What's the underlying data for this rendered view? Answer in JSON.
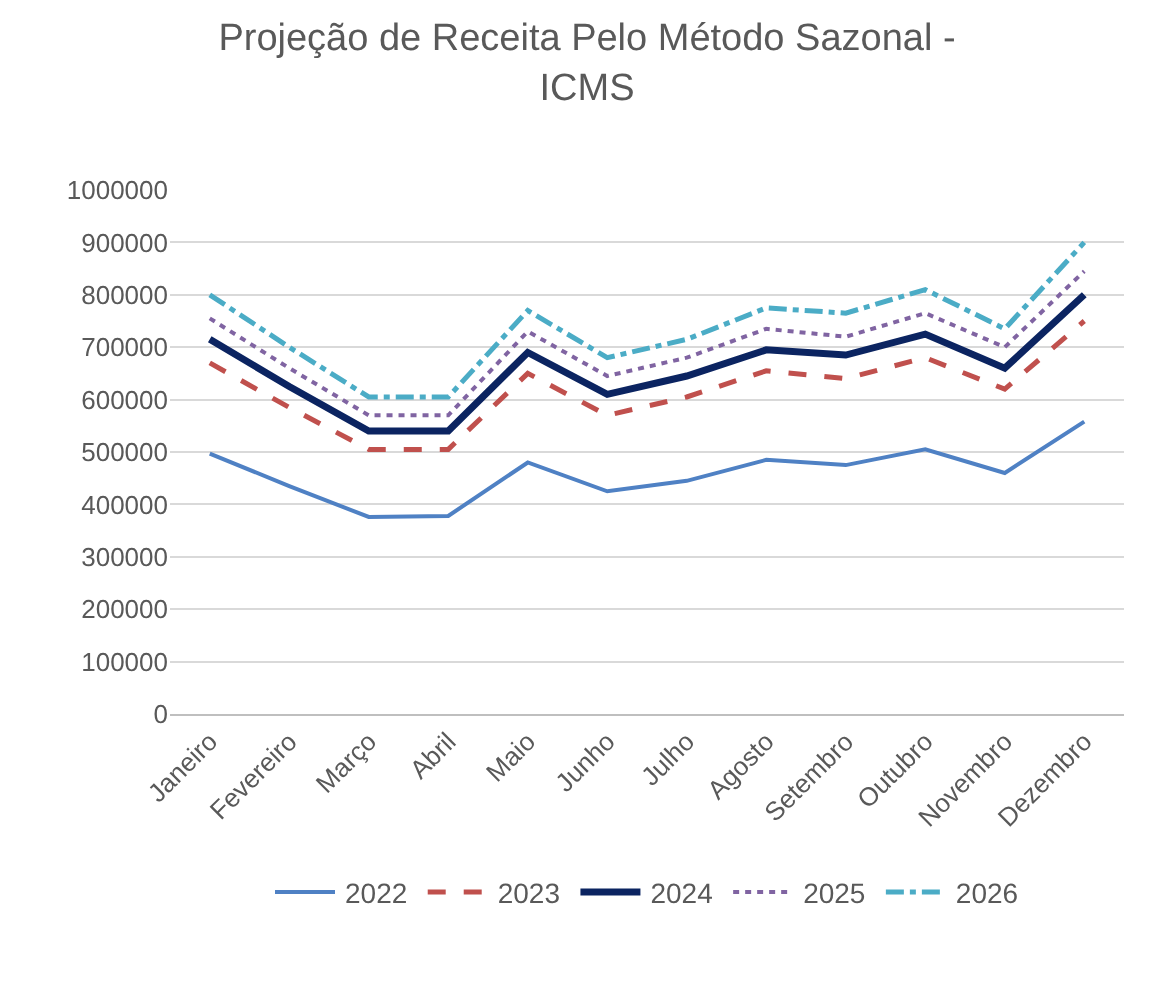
{
  "chart_data": {
    "type": "line",
    "title": "Projeção de Receita Pelo Método Sazonal -\nICMS",
    "categories": [
      "Janeiro",
      "Fevereiro",
      "Março",
      "Abril",
      "Maio",
      "Junho",
      "Julho",
      "Agosto",
      "Setembro",
      "Outubro",
      "Novembro",
      "Dezembro"
    ],
    "series": [
      {
        "name": "2022",
        "color": "#4f81c4",
        "line_style": "solid",
        "values": [
          497000,
          435000,
          376000,
          378000,
          480000,
          425000,
          445000,
          485000,
          475000,
          505000,
          460000,
          558000
        ]
      },
      {
        "name": "2023",
        "color": "#c0504d",
        "line_style": "dashed",
        "values": [
          670000,
          585000,
          505000,
          505000,
          650000,
          570000,
          605000,
          655000,
          640000,
          680000,
          620000,
          750000
        ]
      },
      {
        "name": "2024",
        "color": "#0b2461",
        "line_style": "solid",
        "values": [
          715000,
          625000,
          540000,
          540000,
          690000,
          610000,
          645000,
          695000,
          685000,
          725000,
          660000,
          800000
        ]
      },
      {
        "name": "2025",
        "color": "#8064a2",
        "line_style": "dotted",
        "values": [
          755000,
          660000,
          570000,
          570000,
          730000,
          645000,
          680000,
          735000,
          720000,
          765000,
          700000,
          845000
        ]
      },
      {
        "name": "2026",
        "color": "#4bacc6",
        "line_style": "dashdot",
        "values": [
          800000,
          700000,
          605000,
          605000,
          770000,
          680000,
          715000,
          775000,
          765000,
          810000,
          735000,
          900000
        ]
      }
    ],
    "ylim": [
      0,
      1000000
    ],
    "yticks": [
      0,
      100000,
      200000,
      300000,
      400000,
      500000,
      600000,
      700000,
      800000,
      900000,
      1000000
    ],
    "grid": "y",
    "legend": "bottom",
    "marker": "none"
  }
}
